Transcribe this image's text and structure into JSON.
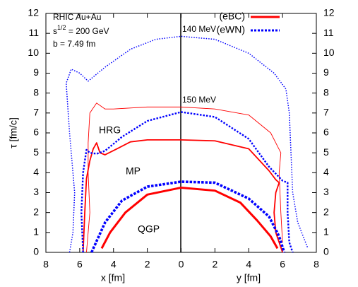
{
  "chart_data": {
    "type": "line",
    "xlabels": [
      "x [fm]",
      "y [fm]"
    ],
    "ylabel": "τ [fm/c]",
    "xlim": [
      -8,
      8
    ],
    "xticks": [
      {
        "value": -8,
        "label": "8"
      },
      {
        "value": -6,
        "label": "6"
      },
      {
        "value": -4,
        "label": "4"
      },
      {
        "value": -2,
        "label": "2"
      },
      0,
      2,
      4,
      6,
      8
    ],
    "ylim": [
      0,
      12
    ],
    "yticks": [
      0,
      1,
      2,
      3,
      4,
      5,
      6,
      7,
      8,
      9,
      10,
      11,
      12
    ],
    "y2lim": [
      0,
      12
    ],
    "y2ticks": [
      0,
      1,
      2,
      3,
      4,
      5,
      6,
      7,
      8,
      9,
      10,
      11,
      12
    ],
    "legend": "upper right",
    "annotations": [
      "RHIC Au+Au",
      {
        "base": "s",
        "sup": "1/2",
        "rest": " = 200 GeV"
      },
      "b = 7.49 fm",
      "140 MeV",
      "150 MeV",
      "HRG",
      "MP",
      "QGP"
    ],
    "series": [
      {
        "name": "(eBC)",
        "color": "#ff0000",
        "style": "solid",
        "curves": [
          {
            "x": [
              -4.7,
              -4.2,
              -3.3,
              -2,
              0,
              2,
              3.5,
              4.5,
              5.3,
              5.7
            ],
            "values": [
              0.2,
              1,
              2,
              2.9,
              3.25,
              3.1,
              2.5,
              1.6,
              0.8,
              0.2
            ]
          },
          {
            "x": [
              -5.8,
              -5.7,
              -5.6,
              -5.4,
              -5.2,
              -5.0,
              -4.8,
              -4.5,
              -3.8,
              -3,
              -2,
              0,
              2,
              4,
              5.2,
              5.6,
              5.8,
              5.6,
              5.5,
              5.6,
              6.0
            ],
            "values": [
              0,
              2,
              3.7,
              4.6,
              5.2,
              5.5,
              5.0,
              4.9,
              5.2,
              5.55,
              5.65,
              5.65,
              5.6,
              5.2,
              4.1,
              3.65,
              3.5,
              3,
              2,
              1,
              0
            ]
          },
          {
            "x": [
              -5.6,
              -5.4,
              -5.5,
              -5.5,
              -5.4,
              -5.0,
              -4.5,
              -4,
              -2,
              0,
              2,
              4,
              5.3,
              5.6,
              5.9,
              5.8,
              5.9,
              6.0
            ],
            "values": [
              0,
              2,
              4,
              5.5,
              7,
              7.5,
              7.2,
              7.2,
              7.3,
              7.3,
              7.2,
              6.9,
              6.0,
              5.5,
              5.0,
              4,
              2,
              0.5
            ]
          }
        ]
      },
      {
        "name": "(eWN)",
        "color": "#0000ff",
        "style": "dotted",
        "curves": [
          {
            "x": [
              -5.3,
              -4.5,
              -3.5,
              -2,
              0,
              2,
              4,
              5.2,
              5.8,
              6.1
            ],
            "values": [
              0,
              1.5,
              2.6,
              3.3,
              3.55,
              3.5,
              2.7,
              1.8,
              0.8,
              0
            ]
          },
          {
            "x": [
              -5.8,
              -5.9,
              -5.8,
              -5.6,
              -5.4,
              -5.0,
              -4.5,
              -3.5,
              -2,
              0,
              2,
              4,
              5.2,
              6.0,
              6.3,
              6.3,
              6.4,
              6.6
            ],
            "values": [
              0,
              2,
              4,
              5.15,
              5.0,
              4.95,
              5.1,
              5.8,
              6.6,
              7.05,
              6.8,
              5.7,
              4.3,
              3.6,
              3.5,
              2,
              0.5,
              0
            ]
          },
          {
            "x": [
              -6.6,
              -6.4,
              -6.3,
              -6.6,
              -6.8,
              -6.5,
              -6.0,
              -5.5,
              -4.5,
              -3,
              -1.5,
              0,
              2,
              4,
              5.5,
              6.2,
              6.4,
              6.5,
              6.6,
              6.9,
              7.5
            ],
            "values": [
              0,
              1,
              3,
              6,
              8.5,
              9.2,
              9.0,
              8.6,
              9.3,
              10.2,
              10.7,
              10.85,
              10.7,
              10.0,
              9.0,
              8.2,
              7.0,
              5.0,
              3.0,
              1.5,
              0.2
            ]
          }
        ]
      }
    ]
  }
}
